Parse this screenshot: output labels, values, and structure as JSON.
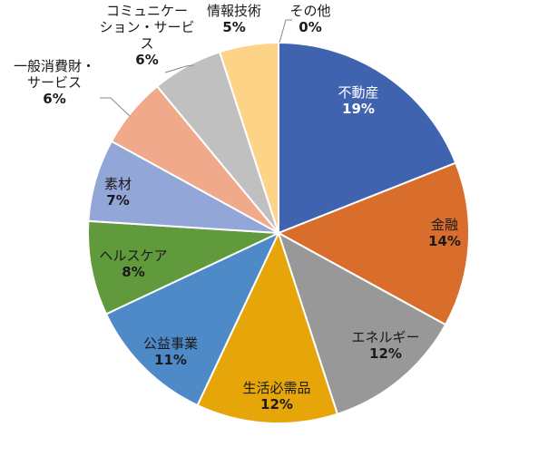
{
  "chart_data": {
    "type": "pie",
    "start_angle_deg": 0,
    "direction": "clockwise",
    "title": "",
    "slices": [
      {
        "label": "不動産",
        "value": 19,
        "pct_text": "19%",
        "color": "#4063b0",
        "text": "white"
      },
      {
        "label": "金融",
        "value": 14,
        "pct_text": "14%",
        "color": "#d96d2c",
        "text": "dark"
      },
      {
        "label": "エネルギー",
        "value": 12,
        "pct_text": "12%",
        "color": "#989898",
        "text": "dark"
      },
      {
        "label": "生活必需品",
        "value": 12,
        "pct_text": "12%",
        "color": "#e6a609",
        "text": "dark"
      },
      {
        "label": "公益事業",
        "value": 11,
        "pct_text": "11%",
        "color": "#4f8ac8",
        "text": "dark"
      },
      {
        "label": "ヘルスケア",
        "value": 8,
        "pct_text": "8%",
        "color": "#609a3c",
        "text": "dark"
      },
      {
        "label": "素材",
        "value": 7,
        "pct_text": "7%",
        "color": "#93a6d8",
        "text": "dark"
      },
      {
        "label": "一般消費財・\nサービス",
        "value": 6,
        "pct_text": "6%",
        "color": "#f1a98b",
        "text": "dark"
      },
      {
        "label": "コミュニケー\nション・サービ\nス",
        "value": 6,
        "pct_text": "6%",
        "color": "#c0c0c0",
        "text": "dark"
      },
      {
        "label": "情報技術",
        "value": 5,
        "pct_text": "5%",
        "color": "#fdd387",
        "text": "dark"
      },
      {
        "label": "その他",
        "value": 0,
        "pct_text": "0%",
        "color": "#2e4a8a",
        "text": "dark"
      }
    ]
  }
}
